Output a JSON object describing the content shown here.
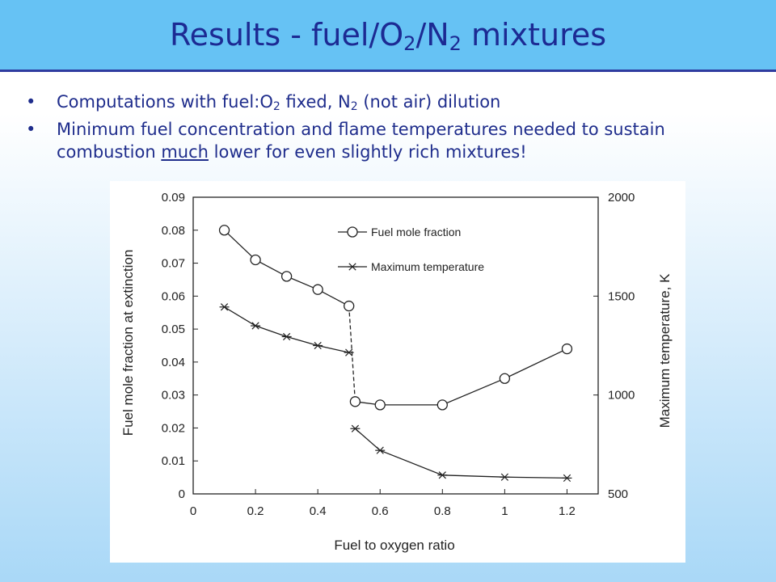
{
  "slide": {
    "title_main": "Results - fuel/O",
    "title_sub1": "2",
    "title_mid": "/N",
    "title_sub2": "2",
    "title_tail": " mixtures",
    "bullets": [
      {
        "part1": "Computations with fuel:O",
        "sub1": "2",
        "part2": " fixed, N",
        "sub2": "2",
        "part3": " (not air) dilution"
      },
      {
        "part1": "Minimum fuel concentration and flame temperatures needed to sustain combustion ",
        "emph": "much",
        "part2": " lower for even slightly rich mixtures!"
      }
    ],
    "bullet_glyph": "•",
    "colors": {
      "title_bar": "#66c2f4",
      "title_text": "#1c2a93",
      "body_text": "#1f2d8c"
    }
  },
  "chart_data": {
    "type": "line",
    "xlabel": "Fuel to oxygen ratio",
    "ylabel_left": "Fuel mole fraction at extinction",
    "ylabel_right": "Maximum temperature, K",
    "xlim": [
      0,
      1.3
    ],
    "ylim_left": [
      0,
      0.09
    ],
    "ylim_right": [
      500,
      2000
    ],
    "x_ticks": [
      "0",
      "0.2",
      "0.4",
      "0.6",
      "0.8",
      "1",
      "1.2"
    ],
    "y_left_ticks": [
      "0",
      "0.01",
      "0.02",
      "0.03",
      "0.04",
      "0.05",
      "0.06",
      "0.07",
      "0.08",
      "0.09"
    ],
    "y_right_ticks": [
      "500",
      "1000",
      "1500",
      "2000"
    ],
    "legend_position": "top-center",
    "series": [
      {
        "name": "Fuel mole fraction",
        "axis": "left",
        "marker": "circle",
        "x": [
          0.1,
          0.2,
          0.3,
          0.4,
          0.5,
          0.52,
          0.6,
          0.8,
          1.0,
          1.2
        ],
        "y": [
          0.08,
          0.071,
          0.066,
          0.062,
          0.057,
          0.028,
          0.027,
          0.027,
          0.035,
          0.044
        ]
      },
      {
        "name": "Maximum temperature",
        "axis": "right",
        "marker": "star",
        "x": [
          0.1,
          0.2,
          0.3,
          0.4,
          0.5,
          0.52,
          0.6,
          0.8,
          1.0,
          1.2
        ],
        "y": [
          1445,
          1350,
          1295,
          1250,
          1215,
          830,
          720,
          595,
          585,
          580
        ]
      }
    ]
  }
}
